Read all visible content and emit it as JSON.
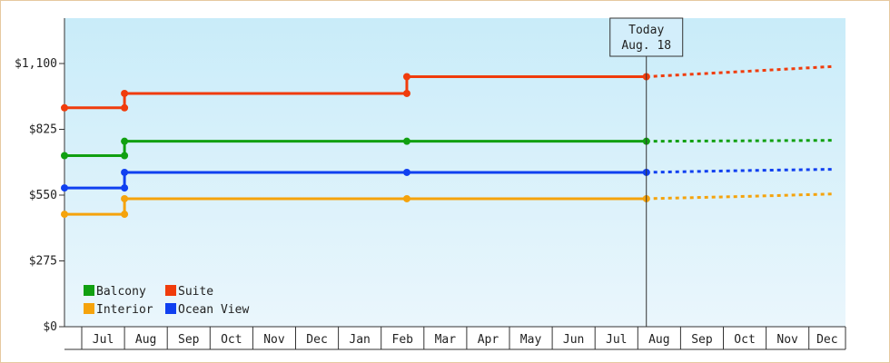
{
  "chart_data": {
    "type": "line",
    "x_labels": [
      "Jul",
      "Aug",
      "Sep",
      "Oct",
      "Nov",
      "Dec",
      "Jan",
      "Feb",
      "Mar",
      "Apr",
      "May",
      "Jun",
      "Jul",
      "Aug",
      "Sep",
      "Oct",
      "Nov",
      "Dec"
    ],
    "y_ticks": [
      "$0",
      "$275",
      "$550",
      "$825",
      "$1,100"
    ],
    "ylim": [
      0,
      1100
    ],
    "grid": false,
    "legend_position": "bottom-left",
    "today_marker": {
      "line1": "Today",
      "line2": "Aug. 18",
      "x": 13.6
    },
    "series": [
      {
        "name": "Balcony",
        "color": "#11a011",
        "solid": [
          [
            0,
            715
          ],
          [
            1.4,
            715
          ],
          [
            1.4,
            775
          ],
          [
            8.0,
            775
          ],
          [
            13.6,
            775
          ]
        ],
        "forecast": [
          [
            13.6,
            775
          ],
          [
            16.0,
            777
          ],
          [
            18.0,
            779
          ]
        ]
      },
      {
        "name": "Suite",
        "color": "#f03c0c",
        "solid": [
          [
            0,
            915
          ],
          [
            1.4,
            915
          ],
          [
            1.4,
            975
          ],
          [
            8.0,
            975
          ],
          [
            8.0,
            1045
          ],
          [
            13.6,
            1045
          ]
        ],
        "forecast": [
          [
            13.6,
            1045
          ],
          [
            16.0,
            1068
          ],
          [
            18.0,
            1088
          ]
        ]
      },
      {
        "name": "Interior",
        "color": "#f5a30c",
        "solid": [
          [
            0,
            470
          ],
          [
            1.4,
            470
          ],
          [
            1.4,
            535
          ],
          [
            8.0,
            535
          ],
          [
            13.6,
            535
          ]
        ],
        "forecast": [
          [
            13.6,
            535
          ],
          [
            16.0,
            545
          ],
          [
            18.0,
            555
          ]
        ]
      },
      {
        "name": "Ocean View",
        "color": "#1040f0",
        "solid": [
          [
            0,
            580
          ],
          [
            1.4,
            580
          ],
          [
            1.4,
            645
          ],
          [
            8.0,
            645
          ],
          [
            13.6,
            645
          ]
        ],
        "forecast": [
          [
            13.6,
            645
          ],
          [
            16.0,
            653
          ],
          [
            18.0,
            658
          ]
        ]
      }
    ]
  }
}
